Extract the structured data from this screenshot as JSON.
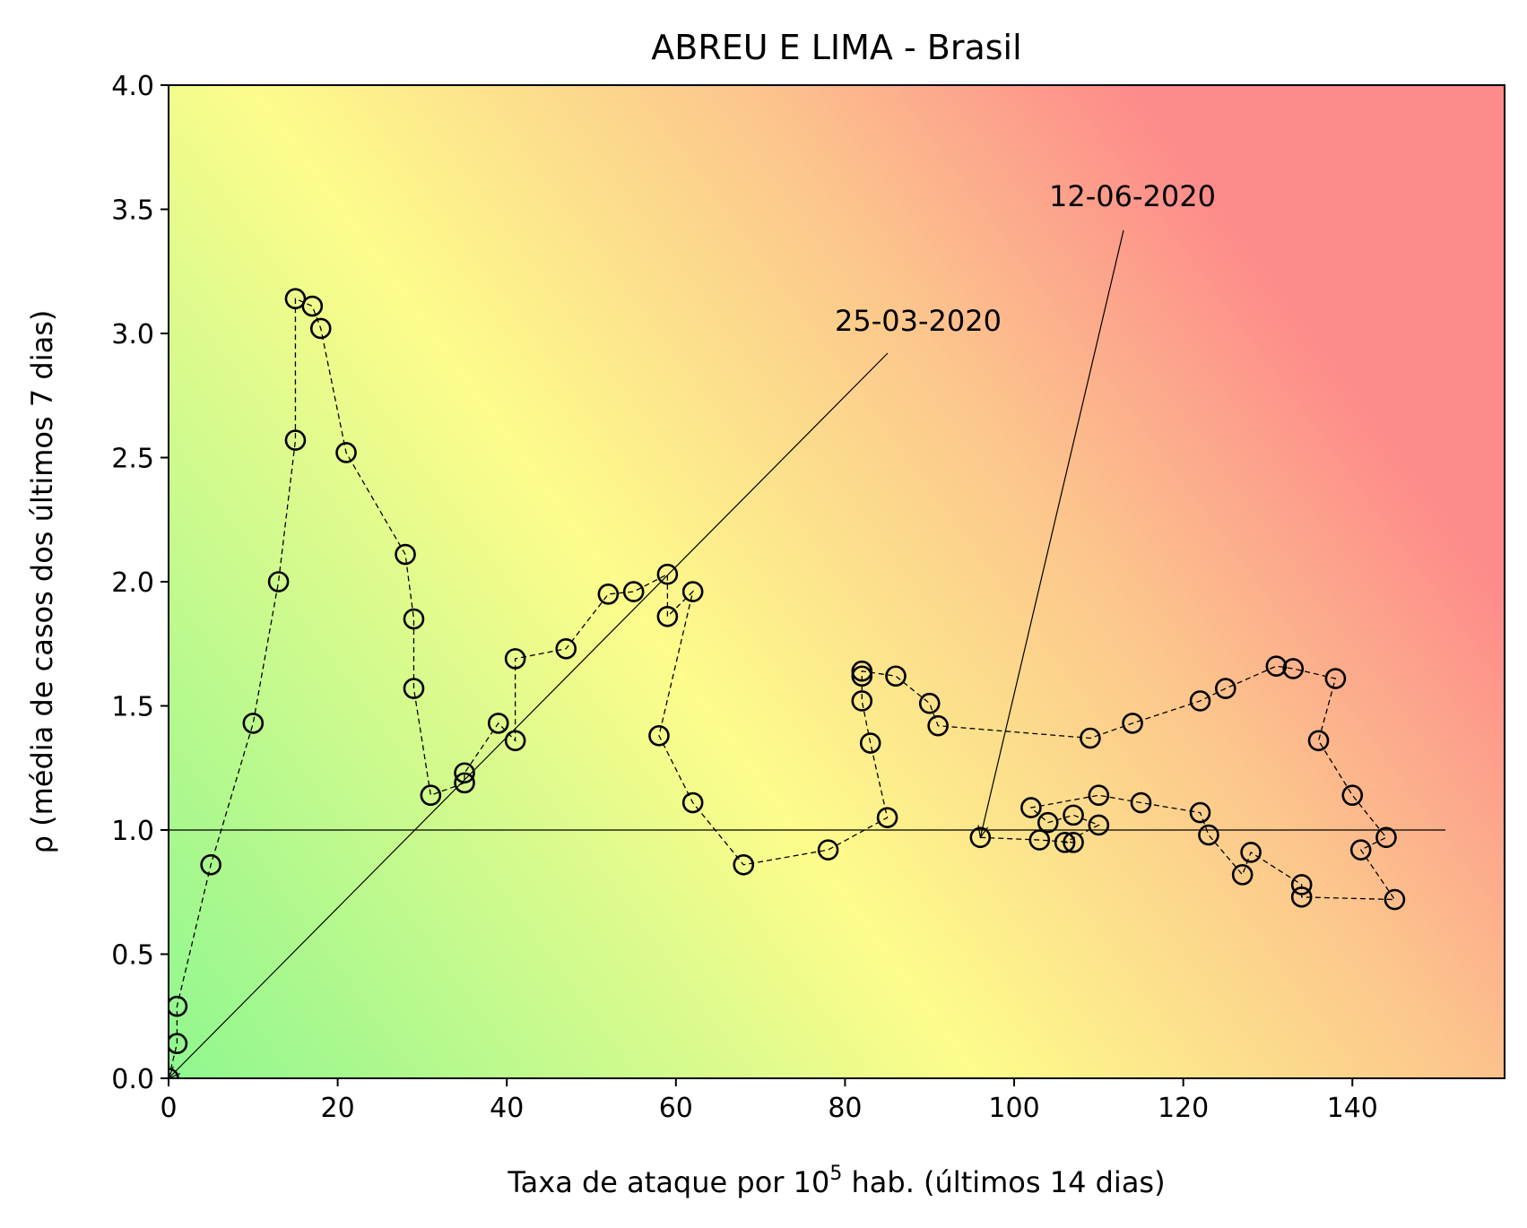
{
  "chart_data": {
    "type": "scatter",
    "title": "ABREU E LIMA - Brasil",
    "xlabel_main": "Taxa de ataque por 10",
    "xlabel_sup": "5",
    "xlabel_rest": " hab. (últimos 14 dias)",
    "ylabel": "ρ (média de casos dos últimos 7 dias)",
    "xlim": [
      0,
      158
    ],
    "ylim": [
      0,
      4.0
    ],
    "xticks": [
      0,
      20,
      40,
      60,
      80,
      100,
      120,
      140
    ],
    "xtick_labels": [
      "0",
      "20",
      "40",
      "60",
      "80",
      "100",
      "120",
      "140"
    ],
    "yticks": [
      0,
      0.5,
      1.0,
      1.5,
      2.0,
      2.5,
      3.0,
      3.5,
      4.0
    ],
    "ytick_labels": [
      "0.0",
      "0.5",
      "1.0",
      "1.5",
      "2.0",
      "2.5",
      "3.0",
      "3.5",
      "4.0"
    ],
    "reference_line": {
      "y": 1.0,
      "x_range": [
        0,
        151
      ]
    },
    "background": "gradient green (low risk) to yellow to red (high risk)",
    "colors": {
      "green": "#8ff78f",
      "yellow": "#fdfc8c",
      "orange": "#fcc58c",
      "red": "#fd8b8b"
    },
    "series": [
      {
        "x": [
          0,
          1,
          1,
          5,
          10,
          13,
          15,
          15,
          17,
          18,
          21,
          28,
          29,
          29,
          31,
          35,
          35,
          39,
          41,
          41,
          47,
          52,
          55,
          59,
          59,
          62,
          58,
          62,
          68,
          78,
          85,
          83,
          82,
          82,
          82,
          86,
          90,
          91,
          109,
          114,
          122,
          125,
          131,
          133,
          138,
          136,
          140,
          144,
          141,
          145,
          134,
          134,
          128,
          127,
          123,
          122,
          115,
          110,
          102,
          104,
          107,
          110,
          106,
          107,
          103,
          96
        ],
        "y": [
          0,
          0.14,
          0.29,
          0.86,
          1.43,
          2.0,
          2.57,
          3.14,
          3.11,
          3.02,
          2.52,
          2.11,
          1.85,
          1.57,
          1.14,
          1.19,
          1.23,
          1.43,
          1.36,
          1.69,
          1.73,
          1.95,
          1.96,
          2.03,
          1.86,
          1.96,
          1.38,
          1.11,
          0.86,
          0.92,
          1.05,
          1.35,
          1.52,
          1.62,
          1.64,
          1.62,
          1.51,
          1.42,
          1.37,
          1.43,
          1.52,
          1.57,
          1.66,
          1.65,
          1.61,
          1.36,
          1.14,
          0.97,
          0.92,
          0.72,
          0.73,
          0.78,
          0.91,
          0.82,
          0.98,
          1.07,
          1.11,
          1.14,
          1.09,
          1.03,
          1.06,
          1.02,
          0.95,
          0.95,
          0.96,
          0.97
        ]
      }
    ],
    "annotations": [
      {
        "text": "25-03-2020",
        "x": 0,
        "y": 0
      },
      {
        "text": "12-06-2020",
        "x": 96,
        "y": 0.97
      }
    ]
  }
}
